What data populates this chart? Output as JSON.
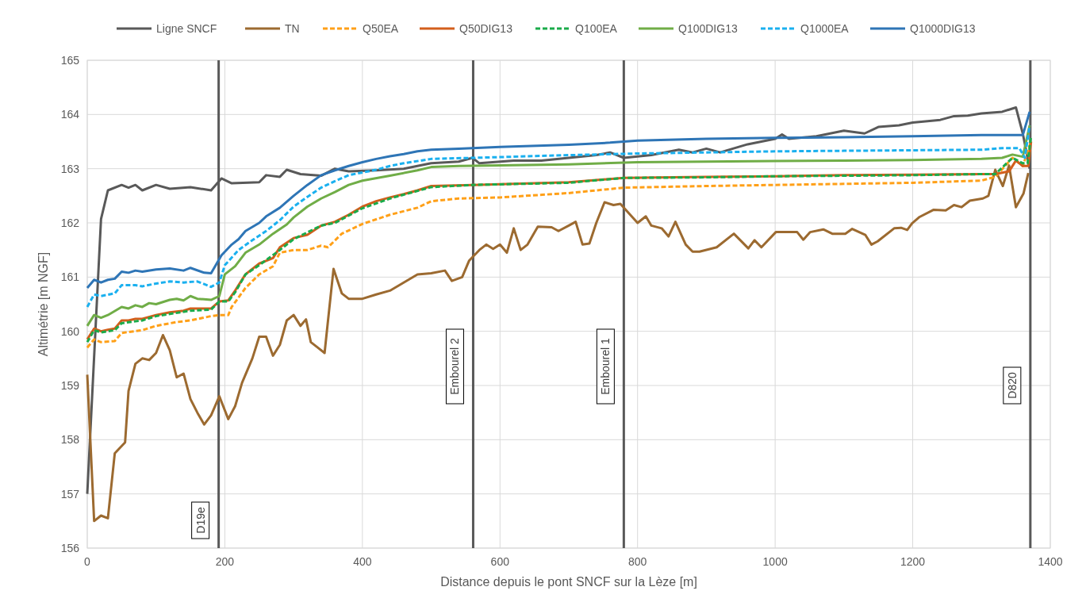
{
  "chart_data": {
    "type": "line",
    "xlabel": "Distance depuis le pont SNCF sur la Lèze [m]",
    "ylabel": "Altimétrie [m NGF]",
    "xlim": [
      0,
      1400
    ],
    "xticks": [
      0,
      200,
      400,
      600,
      800,
      1000,
      1200,
      1400
    ],
    "ylim": [
      156,
      165
    ],
    "yticks": [
      156,
      157,
      158,
      159,
      160,
      161,
      162,
      163,
      164,
      165
    ],
    "grid": true,
    "legend": "top",
    "marker": "none",
    "series": [
      {
        "name": "Ligne SNCF",
        "color": "#595959",
        "line_style": "solid",
        "x": [
          0,
          20,
          30,
          50,
          60,
          70,
          80,
          100,
          120,
          150,
          180,
          195,
          210,
          250,
          260,
          280,
          290,
          310,
          340,
          360,
          380,
          420,
          460,
          500,
          540,
          560,
          570,
          620,
          660,
          700,
          740,
          760,
          780,
          820,
          860,
          880,
          900,
          920,
          960,
          980,
          1000,
          1010,
          1020,
          1060,
          1100,
          1130,
          1150,
          1180,
          1200,
          1240,
          1260,
          1280,
          1300,
          1330,
          1350,
          1360,
          1370
        ],
        "values": [
          157.0,
          162.07,
          162.6,
          162.7,
          162.65,
          162.7,
          162.6,
          162.7,
          162.63,
          162.66,
          162.6,
          162.82,
          162.73,
          162.75,
          162.88,
          162.85,
          162.98,
          162.9,
          162.87,
          163.0,
          162.95,
          162.97,
          163.0,
          163.1,
          163.13,
          163.2,
          163.1,
          163.15,
          163.15,
          163.2,
          163.25,
          163.3,
          163.2,
          163.25,
          163.35,
          163.3,
          163.37,
          163.3,
          163.45,
          163.5,
          163.55,
          163.63,
          163.55,
          163.6,
          163.7,
          163.65,
          163.77,
          163.8,
          163.85,
          163.9,
          163.97,
          163.98,
          164.02,
          164.05,
          164.13,
          163.65,
          163.0
        ]
      },
      {
        "name": "TN",
        "color": "#9c6a30",
        "line_style": "solid",
        "x": [
          0,
          10,
          20,
          30,
          40,
          55,
          60,
          70,
          80,
          90,
          100,
          110,
          120,
          130,
          140,
          150,
          160,
          170,
          180,
          192,
          205,
          215,
          225,
          240,
          250,
          260,
          270,
          280,
          290,
          300,
          310,
          318,
          325,
          335,
          345,
          350,
          358,
          370,
          380,
          400,
          420,
          440,
          460,
          480,
          500,
          520,
          530,
          545,
          555,
          570,
          580,
          590,
          600,
          610,
          620,
          630,
          640,
          655,
          675,
          685,
          700,
          710,
          720,
          730,
          740,
          752,
          765,
          775,
          800,
          812,
          820,
          835,
          845,
          855,
          870,
          880,
          890,
          915,
          940,
          961,
          970,
          980,
          1001,
          1032,
          1041,
          1051,
          1070,
          1083,
          1102,
          1112,
          1131,
          1140,
          1149,
          1173,
          1183,
          1192,
          1199,
          1210,
          1230,
          1248,
          1260,
          1271,
          1283,
          1302,
          1310,
          1320,
          1331,
          1340,
          1350,
          1361,
          1368
        ],
        "values": [
          159.2,
          156.5,
          156.6,
          156.55,
          157.75,
          157.95,
          158.9,
          159.4,
          159.5,
          159.47,
          159.6,
          159.93,
          159.65,
          159.15,
          159.22,
          158.75,
          158.5,
          158.28,
          158.45,
          158.8,
          158.38,
          158.62,
          159.05,
          159.5,
          159.9,
          159.9,
          159.55,
          159.75,
          160.2,
          160.3,
          160.1,
          160.22,
          159.8,
          159.7,
          159.6,
          160.2,
          161.15,
          160.7,
          160.6,
          160.6,
          160.68,
          160.75,
          160.9,
          161.05,
          161.07,
          161.12,
          160.93,
          161.0,
          161.3,
          161.5,
          161.6,
          161.52,
          161.6,
          161.45,
          161.9,
          161.5,
          161.6,
          161.93,
          161.92,
          161.85,
          161.95,
          162.02,
          161.6,
          161.62,
          162.0,
          162.38,
          162.33,
          162.35,
          162.0,
          162.12,
          161.95,
          161.9,
          161.75,
          162.02,
          161.6,
          161.47,
          161.47,
          161.55,
          161.8,
          161.53,
          161.68,
          161.55,
          161.83,
          161.83,
          161.69,
          161.83,
          161.88,
          161.8,
          161.8,
          161.89,
          161.78,
          161.6,
          161.66,
          161.9,
          161.91,
          161.87,
          161.99,
          162.11,
          162.24,
          162.23,
          162.33,
          162.29,
          162.41,
          162.45,
          162.5,
          162.98,
          162.68,
          163.06,
          162.29,
          162.54,
          162.92
        ]
      },
      {
        "name": "Q50EA",
        "color": "#ffa018",
        "line_style": "dashed",
        "x": [
          0,
          10,
          20,
          40,
          50,
          80,
          100,
          130,
          150,
          180,
          192,
          205,
          210,
          230,
          250,
          270,
          280,
          300,
          320,
          340,
          350,
          370,
          400,
          440,
          480,
          500,
          540,
          600,
          700,
          780,
          900,
          1000,
          1100,
          1200,
          1300,
          1320,
          1345,
          1360,
          1372
        ],
        "values": [
          159.7,
          159.85,
          159.8,
          159.82,
          159.97,
          160.02,
          160.1,
          160.17,
          160.2,
          160.28,
          160.3,
          160.3,
          160.45,
          160.8,
          161.05,
          161.2,
          161.45,
          161.5,
          161.5,
          161.58,
          161.55,
          161.8,
          161.98,
          162.15,
          162.28,
          162.4,
          162.45,
          162.47,
          162.55,
          162.65,
          162.68,
          162.7,
          162.72,
          162.74,
          162.78,
          162.85,
          163.2,
          163.05,
          163.5
        ]
      },
      {
        "name": "Q50DIG13",
        "color": "#d35f1c",
        "line_style": "solid",
        "x": [
          0,
          10,
          20,
          30,
          40,
          50,
          60,
          70,
          80,
          100,
          120,
          140,
          150,
          180,
          192,
          205,
          215,
          230,
          250,
          270,
          280,
          300,
          320,
          340,
          360,
          380,
          400,
          420,
          440,
          460,
          480,
          500,
          560,
          700,
          780,
          900,
          1000,
          1100,
          1200,
          1300,
          1320,
          1340,
          1350,
          1360,
          1368,
          1372
        ],
        "values": [
          159.85,
          160.05,
          160.0,
          160.03,
          160.05,
          160.2,
          160.2,
          160.23,
          160.23,
          160.3,
          160.35,
          160.38,
          160.42,
          160.42,
          160.55,
          160.57,
          160.75,
          161.05,
          161.25,
          161.35,
          161.55,
          161.72,
          161.78,
          161.95,
          162.02,
          162.15,
          162.3,
          162.4,
          162.47,
          162.53,
          162.6,
          162.68,
          162.7,
          162.75,
          162.83,
          162.85,
          162.86,
          162.88,
          162.89,
          162.9,
          162.9,
          162.95,
          163.15,
          163.05,
          163.05,
          163.5
        ]
      },
      {
        "name": "Q100EA",
        "color": "#1aab4a",
        "line_style": "dashed",
        "x": [
          0,
          10,
          20,
          40,
          50,
          80,
          100,
          150,
          180,
          192,
          205,
          215,
          230,
          250,
          280,
          300,
          340,
          360,
          400,
          440,
          500,
          560,
          700,
          780,
          900,
          1000,
          1200,
          1300,
          1320,
          1345,
          1360,
          1367,
          1372
        ],
        "values": [
          159.8,
          160.02,
          159.98,
          160.02,
          160.15,
          160.2,
          160.28,
          160.38,
          160.4,
          160.55,
          160.55,
          160.72,
          161.05,
          161.22,
          161.5,
          161.7,
          161.95,
          162.0,
          162.27,
          162.45,
          162.66,
          162.7,
          162.74,
          162.83,
          162.84,
          162.86,
          162.88,
          162.9,
          162.9,
          163.2,
          163.1,
          163.1,
          163.6
        ]
      },
      {
        "name": "Q100DIG13",
        "color": "#70ad47",
        "line_style": "solid",
        "x": [
          0,
          10,
          20,
          30,
          50,
          60,
          70,
          80,
          90,
          100,
          120,
          130,
          140,
          150,
          160,
          180,
          192,
          200,
          215,
          230,
          250,
          270,
          290,
          300,
          320,
          340,
          360,
          380,
          400,
          440,
          480,
          500,
          540,
          600,
          700,
          800,
          900,
          1000,
          1100,
          1200,
          1300,
          1330,
          1345,
          1360,
          1370
        ],
        "values": [
          160.1,
          160.3,
          160.25,
          160.3,
          160.45,
          160.42,
          160.48,
          160.45,
          160.52,
          160.5,
          160.58,
          160.6,
          160.57,
          160.65,
          160.6,
          160.58,
          160.65,
          161.05,
          161.2,
          161.45,
          161.6,
          161.8,
          161.97,
          162.1,
          162.3,
          162.45,
          162.57,
          162.7,
          162.78,
          162.87,
          162.97,
          163.03,
          163.05,
          163.06,
          163.08,
          163.12,
          163.13,
          163.14,
          163.15,
          163.16,
          163.18,
          163.2,
          163.26,
          163.22,
          163.8
        ]
      },
      {
        "name": "Q1000EA",
        "color": "#1ab0ef",
        "line_style": "dashed",
        "x": [
          0,
          10,
          20,
          40,
          50,
          70,
          80,
          100,
          120,
          140,
          160,
          180,
          192,
          200,
          220,
          240,
          260,
          280,
          300,
          320,
          340,
          360,
          380,
          400,
          420,
          440,
          460,
          500,
          560,
          700,
          800,
          900,
          1000,
          1100,
          1200,
          1300,
          1330,
          1355,
          1363,
          1370
        ],
        "values": [
          160.45,
          160.68,
          160.65,
          160.7,
          160.85,
          160.85,
          160.83,
          160.88,
          160.92,
          160.9,
          160.92,
          160.82,
          160.9,
          161.22,
          161.5,
          161.68,
          161.85,
          162.05,
          162.3,
          162.48,
          162.65,
          162.77,
          162.88,
          162.93,
          162.98,
          163.05,
          163.1,
          163.18,
          163.2,
          163.25,
          163.28,
          163.3,
          163.32,
          163.33,
          163.34,
          163.35,
          163.38,
          163.38,
          163.2,
          163.8
        ]
      },
      {
        "name": "Q1000DIG13",
        "color": "#2e75b6",
        "line_style": "solid",
        "x": [
          0,
          10,
          20,
          30,
          40,
          50,
          60,
          70,
          80,
          100,
          120,
          140,
          150,
          170,
          180,
          195,
          210,
          220,
          230,
          250,
          260,
          280,
          300,
          320,
          340,
          360,
          380,
          400,
          420,
          440,
          460,
          480,
          500,
          540,
          600,
          700,
          760,
          800,
          900,
          1000,
          1100,
          1200,
          1300,
          1360,
          1370
        ],
        "values": [
          160.8,
          160.95,
          160.9,
          160.95,
          160.97,
          161.1,
          161.08,
          161.12,
          161.1,
          161.14,
          161.16,
          161.12,
          161.17,
          161.08,
          161.07,
          161.4,
          161.6,
          161.7,
          161.85,
          162.0,
          162.12,
          162.28,
          162.5,
          162.7,
          162.88,
          162.97,
          163.05,
          163.12,
          163.18,
          163.23,
          163.27,
          163.32,
          163.35,
          163.37,
          163.4,
          163.44,
          163.48,
          163.52,
          163.55,
          163.57,
          163.58,
          163.6,
          163.62,
          163.62,
          164.05
        ]
      }
    ],
    "ref_lines": [
      {
        "axis": "x",
        "value": 191,
        "label": "D19e",
        "color": "#595959"
      },
      {
        "axis": "x",
        "value": 561,
        "label": "Embourel 2",
        "color": "#595959"
      },
      {
        "axis": "x",
        "value": 780,
        "label": "Embourel 1",
        "color": "#595959"
      },
      {
        "axis": "x",
        "value": 1371,
        "label": "D820",
        "color": "#595959"
      }
    ]
  }
}
